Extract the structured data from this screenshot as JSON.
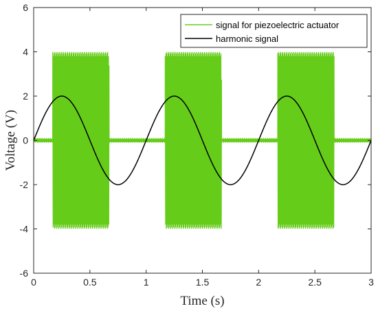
{
  "chart_data": {
    "type": "line",
    "xlabel": "Time (s)",
    "ylabel": "Voltage (V)",
    "xlim": [
      0,
      3
    ],
    "ylim": [
      -6,
      6
    ],
    "xticks": [
      0,
      0.5,
      1,
      1.5,
      2,
      2.5,
      3
    ],
    "xtick_labels": [
      "0",
      "0.5",
      "1",
      "1.5",
      "2",
      "2.5",
      "3"
    ],
    "yticks": [
      -6,
      -4,
      -2,
      0,
      2,
      4,
      6
    ],
    "ytick_labels": [
      "-6",
      "-4",
      "-2",
      "0",
      "2",
      "4",
      "6"
    ],
    "grid": false,
    "legend_position": "top-right",
    "series": [
      {
        "name": "signal for piezoelectric actuator",
        "color": "#66cc1a",
        "kind": "burst",
        "amplitude": 4,
        "idle_amplitude": 0.05,
        "bursts": [
          [
            0.17,
            0.67
          ],
          [
            1.17,
            1.67
          ],
          [
            2.17,
            2.67
          ]
        ]
      },
      {
        "name": "harmonic signal",
        "color": "#000000",
        "kind": "sine",
        "amplitude": 2,
        "frequency": 1,
        "phase": 0
      }
    ]
  }
}
